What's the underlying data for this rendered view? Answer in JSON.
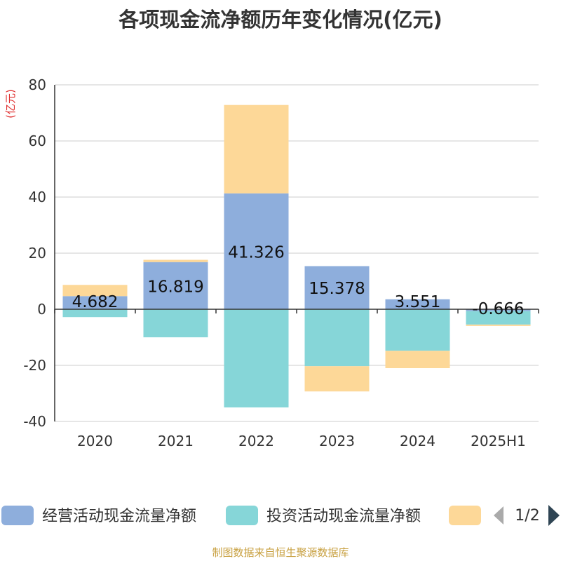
{
  "chart_data": {
    "type": "bar",
    "title": "各项现金流净额历年变化情况(亿元)",
    "ylabel": "(亿元)",
    "ylim": [
      -40,
      80
    ],
    "yticks": [
      -40,
      -20,
      0,
      20,
      40,
      60,
      80
    ],
    "categories": [
      "2020",
      "2021",
      "2022",
      "2023",
      "2024",
      "2025H1"
    ],
    "stacked": true,
    "series": [
      {
        "name": "经营活动现金流量净额",
        "color": "#8eaedc",
        "values": [
          4.682,
          16.819,
          41.326,
          15.378,
          3.551,
          -0.666
        ],
        "labels": [
          "4.682",
          "16.819",
          "41.326",
          "15.378",
          "3.551",
          "-0.666"
        ]
      },
      {
        "name": "投资活动现金流量净额",
        "color": "#86d6d8",
        "values": [
          -2.8,
          -10.0,
          -35.0,
          -20.3,
          -14.8,
          -4.8
        ]
      },
      {
        "name": "",
        "color": "#fdd898",
        "values": [
          4.0,
          0.8,
          31.5,
          -9.0,
          -6.2,
          -0.5
        ]
      }
    ],
    "grid": true,
    "legend_position": "bottom"
  },
  "legend": {
    "page": "1/2"
  },
  "footer": {
    "source": "制图数据来自恒生聚源数据库"
  }
}
